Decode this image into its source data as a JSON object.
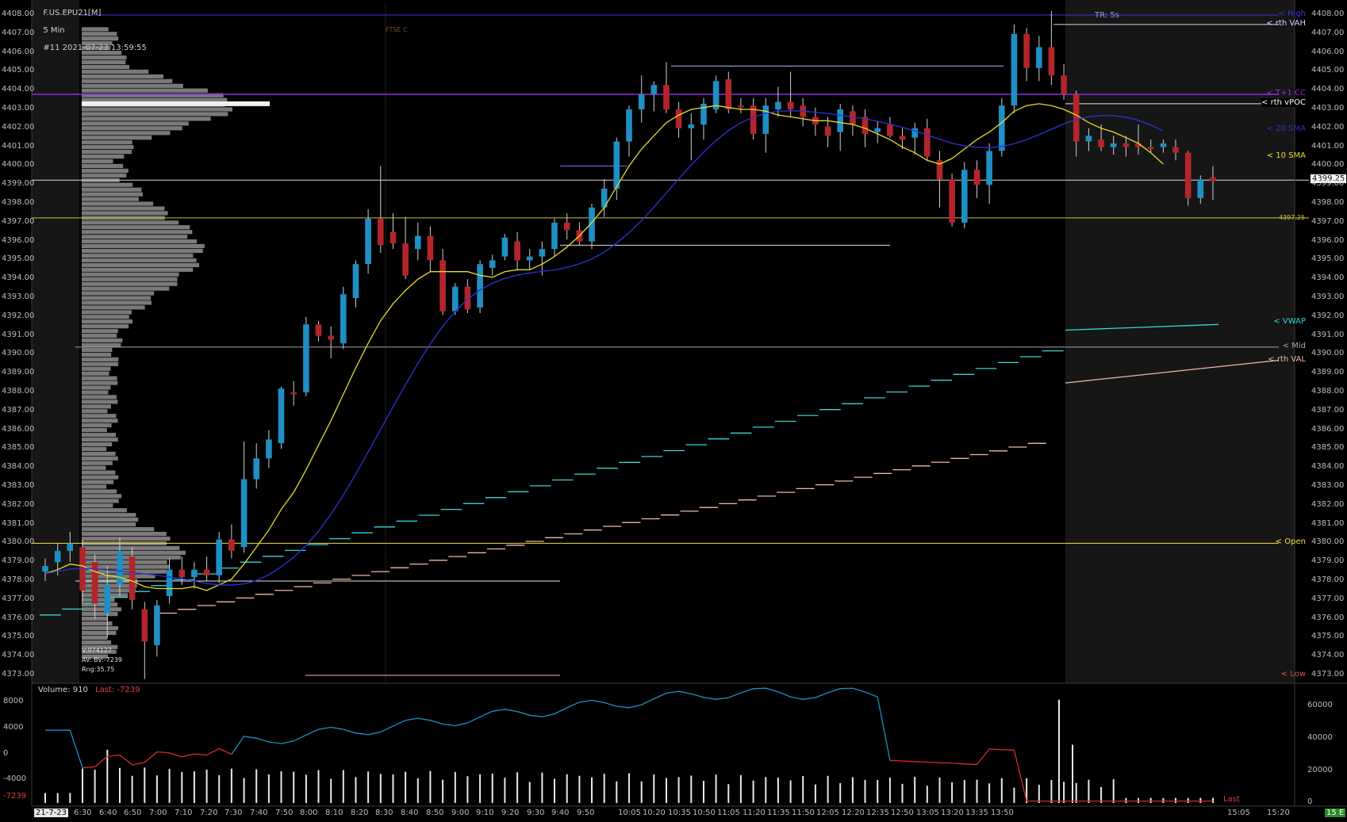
{
  "header": {
    "title": "F.US.EPU21[M]",
    "timeframe": "5 Min",
    "chart_info": "#11 2021-07-23 13:59:55"
  },
  "tr_label": "TR: 5s",
  "ftse_label": "FTSE C",
  "price_axis": {
    "ticks": [
      "4408.00",
      "4407.00",
      "4406.00",
      "4405.00",
      "4404.00",
      "4403.00",
      "4402.00",
      "4401.00",
      "4400.00",
      "4399.00",
      "4398.00",
      "4397.00",
      "4396.00",
      "4395.00",
      "4394.00",
      "4393.00",
      "4392.00",
      "4391.00",
      "4390.00",
      "4389.00",
      "4388.00",
      "4387.00",
      "4386.00",
      "4385.00",
      "4384.00",
      "4383.00",
      "4382.00",
      "4381.00",
      "4380.00",
      "4379.00",
      "4378.00",
      "4377.00",
      "4376.00",
      "4375.00",
      "4374.00",
      "4373.00"
    ],
    "current_price": "4399.25",
    "marker_label": "4397.25"
  },
  "levels": [
    {
      "name": "High",
      "label": "< High",
      "price": 4408.0,
      "color": "#3b3bd8"
    },
    {
      "name": "rth VAH",
      "label": "< rth VAH",
      "price": 4407.5,
      "color": "#d8d8ff"
    },
    {
      "name": "T+1 CC",
      "label": "< T+1 CC",
      "price": 4403.8,
      "color": "#8e2de0"
    },
    {
      "name": "rth vPOC",
      "label": "< rth vPOC",
      "price": 4403.3,
      "color": "#ffffff"
    },
    {
      "name": "20 SMA",
      "label": "< 20 SMA",
      "price": 4401.9,
      "color": "#2d33d8"
    },
    {
      "name": "10 SMA",
      "label": "< 10 SMA",
      "price": 4400.5,
      "color": "#e6dc2d"
    },
    {
      "name": "VWAP",
      "label": "< VWAP",
      "price": 4391.7,
      "color": "#34d6d6"
    },
    {
      "name": "Mid",
      "label": "< Mid",
      "price": 4390.4,
      "color": "#a8a8a8"
    },
    {
      "name": "rth VAL",
      "label": "< rth VAL",
      "price": 4389.7,
      "color": "#f2b8a8"
    },
    {
      "name": "Open",
      "label": "< Open",
      "price": 4380.0,
      "color": "#f0e040"
    },
    {
      "name": "Low",
      "label": "< Low",
      "price": 4373.0,
      "color": "#e05050"
    }
  ],
  "time_axis": {
    "date_label": "21-7-23",
    "labels": [
      "6:30",
      "6:40",
      "6:50",
      "7:00",
      "7:10",
      "7:20",
      "7:30",
      "7:40",
      "7:50",
      "8:00",
      "8:10",
      "8:20",
      "8:30",
      "8:40",
      "8:50",
      "9:00",
      "9:10",
      "9:20",
      "9:30",
      "9:40",
      "9:50",
      "10:05",
      "10:20",
      "10:35",
      "10:50",
      "11:05",
      "11:20",
      "11:35",
      "11:50",
      "12:05",
      "12:20",
      "12:35",
      "12:50",
      "13:05",
      "13:20",
      "13:35",
      "13:50",
      "15:05",
      "15:20"
    ],
    "timeframe_badge": "15 E"
  },
  "profile_stats": {
    "volume": "V:974127",
    "delta": "AV: BV:-7239",
    "range": "Rng:35.75"
  },
  "volume_panel": {
    "label": "Volume: 910",
    "last_label": "Last: -7239",
    "left_ticks": [
      "8000",
      "4000",
      "0",
      "-4000",
      "-7239"
    ],
    "right_ticks": [
      "60000",
      "40000",
      "20000",
      "0"
    ],
    "last_tag": "Last"
  },
  "colors": {
    "up": "#1f8fc4",
    "down": "#b3252a",
    "sma10": "#e6dc2d",
    "sma20": "#2d33d8",
    "vwap": "#34d6d6",
    "val_track": "#f2b8a8",
    "delta_up": "#1f8fc4",
    "delta_down": "#d62a2a"
  },
  "chart_data": {
    "type": "candlestick",
    "symbol": "F.US.EPU21[M]",
    "interval": "5 Min",
    "ylim": [
      4372.6,
      4408.4
    ],
    "candles": [
      {
        "o": 4378.5,
        "h": 4379.2,
        "l": 4378.0,
        "c": 4378.8
      },
      {
        "o": 4379.0,
        "h": 4380.0,
        "l": 4378.3,
        "c": 4379.6
      },
      {
        "o": 4379.6,
        "h": 4380.6,
        "l": 4379.0,
        "c": 4380.0
      },
      {
        "o": 4379.8,
        "h": 4380.2,
        "l": 4376.8,
        "c": 4377.5
      },
      {
        "o": 4379.0,
        "h": 4379.4,
        "l": 4376.0,
        "c": 4376.8
      },
      {
        "o": 4376.3,
        "h": 4378.8,
        "l": 4375.0,
        "c": 4377.8
      },
      {
        "o": 4377.8,
        "h": 4380.3,
        "l": 4377.2,
        "c": 4379.6
      },
      {
        "o": 4379.3,
        "h": 4379.8,
        "l": 4376.5,
        "c": 4377.0
      },
      {
        "o": 4376.5,
        "h": 4376.9,
        "l": 4372.8,
        "c": 4374.8
      },
      {
        "o": 4374.6,
        "h": 4377.0,
        "l": 4374.0,
        "c": 4376.7
      },
      {
        "o": 4377.2,
        "h": 4379.2,
        "l": 4376.8,
        "c": 4378.6
      },
      {
        "o": 4378.6,
        "h": 4379.3,
        "l": 4377.8,
        "c": 4378.2
      },
      {
        "o": 4378.2,
        "h": 4379.0,
        "l": 4377.6,
        "c": 4378.6
      },
      {
        "o": 4378.6,
        "h": 4379.3,
        "l": 4378.0,
        "c": 4378.3
      },
      {
        "o": 4378.3,
        "h": 4380.6,
        "l": 4377.9,
        "c": 4380.2
      },
      {
        "o": 4380.2,
        "h": 4381.0,
        "l": 4379.2,
        "c": 4379.6
      },
      {
        "o": 4379.8,
        "h": 4385.4,
        "l": 4379.5,
        "c": 4383.4
      },
      {
        "o": 4383.4,
        "h": 4385.3,
        "l": 4382.9,
        "c": 4384.5
      },
      {
        "o": 4384.5,
        "h": 4386.0,
        "l": 4384.0,
        "c": 4385.5
      },
      {
        "o": 4385.3,
        "h": 4388.3,
        "l": 4385.0,
        "c": 4388.2
      },
      {
        "o": 4388.0,
        "h": 4388.6,
        "l": 4387.3,
        "c": 4387.9
      },
      {
        "o": 4388.0,
        "h": 4392.0,
        "l": 4387.8,
        "c": 4391.6
      },
      {
        "o": 4391.6,
        "h": 4391.8,
        "l": 4390.7,
        "c": 4391.0
      },
      {
        "o": 4391.0,
        "h": 4391.5,
        "l": 4389.8,
        "c": 4390.8
      },
      {
        "o": 4390.6,
        "h": 4393.6,
        "l": 4390.3,
        "c": 4393.2
      },
      {
        "o": 4393.0,
        "h": 4395.0,
        "l": 4392.5,
        "c": 4394.8
      },
      {
        "o": 4394.8,
        "h": 4397.7,
        "l": 4394.3,
        "c": 4397.2
      },
      {
        "o": 4397.2,
        "h": 4400.0,
        "l": 4395.4,
        "c": 4395.8
      },
      {
        "o": 4396.5,
        "h": 4397.5,
        "l": 4395.6,
        "c": 4395.9
      },
      {
        "o": 4395.9,
        "h": 4397.3,
        "l": 4394.0,
        "c": 4394.2
      },
      {
        "o": 4395.6,
        "h": 4397.0,
        "l": 4395.0,
        "c": 4396.3
      },
      {
        "o": 4396.3,
        "h": 4396.8,
        "l": 4394.4,
        "c": 4395.0
      },
      {
        "o": 4395.0,
        "h": 4395.6,
        "l": 4392.1,
        "c": 4392.3
      },
      {
        "o": 4392.3,
        "h": 4393.8,
        "l": 4392.1,
        "c": 4393.6
      },
      {
        "o": 4393.6,
        "h": 4394.0,
        "l": 4392.2,
        "c": 4392.4
      },
      {
        "o": 4392.5,
        "h": 4395.0,
        "l": 4392.2,
        "c": 4394.8
      },
      {
        "o": 4394.6,
        "h": 4395.3,
        "l": 4394.2,
        "c": 4395.0
      },
      {
        "o": 4395.2,
        "h": 4396.4,
        "l": 4395.0,
        "c": 4396.2
      },
      {
        "o": 4396.0,
        "h": 4396.5,
        "l": 4394.5,
        "c": 4395.0
      },
      {
        "o": 4395.0,
        "h": 4395.6,
        "l": 4394.5,
        "c": 4395.2
      },
      {
        "o": 4395.2,
        "h": 4396.0,
        "l": 4394.2,
        "c": 4395.6
      },
      {
        "o": 4395.6,
        "h": 4397.2,
        "l": 4395.2,
        "c": 4397.0
      },
      {
        "o": 4397.0,
        "h": 4397.5,
        "l": 4396.1,
        "c": 4396.6
      },
      {
        "o": 4396.6,
        "h": 4397.0,
        "l": 4395.8,
        "c": 4396.0
      },
      {
        "o": 4396.0,
        "h": 4398.0,
        "l": 4395.6,
        "c": 4397.8
      },
      {
        "o": 4397.8,
        "h": 4399.3,
        "l": 4397.3,
        "c": 4398.8
      },
      {
        "o": 4398.8,
        "h": 4401.5,
        "l": 4398.2,
        "c": 4401.3
      },
      {
        "o": 4401.3,
        "h": 4403.2,
        "l": 4400.5,
        "c": 4403.0
      },
      {
        "o": 4403.0,
        "h": 4404.8,
        "l": 4402.3,
        "c": 4403.8
      },
      {
        "o": 4403.8,
        "h": 4404.5,
        "l": 4402.9,
        "c": 4404.3
      },
      {
        "o": 4404.3,
        "h": 4405.5,
        "l": 4402.8,
        "c": 4403.0
      },
      {
        "o": 4403.0,
        "h": 4403.4,
        "l": 4401.5,
        "c": 4402.0
      },
      {
        "o": 4402.0,
        "h": 4402.8,
        "l": 4400.3,
        "c": 4402.2
      },
      {
        "o": 4402.2,
        "h": 4403.6,
        "l": 4401.4,
        "c": 4403.3
      },
      {
        "o": 4403.0,
        "h": 4404.8,
        "l": 4402.8,
        "c": 4404.5
      },
      {
        "o": 4404.6,
        "h": 4405.0,
        "l": 4402.8,
        "c": 4403.0
      },
      {
        "o": 4403.2,
        "h": 4403.6,
        "l": 4402.8,
        "c": 4403.1
      },
      {
        "o": 4403.2,
        "h": 4403.6,
        "l": 4401.4,
        "c": 4401.7
      },
      {
        "o": 4401.7,
        "h": 4403.6,
        "l": 4400.7,
        "c": 4403.2
      },
      {
        "o": 4403.0,
        "h": 4404.2,
        "l": 4402.6,
        "c": 4403.4
      },
      {
        "o": 4403.4,
        "h": 4405.0,
        "l": 4402.6,
        "c": 4403.0
      },
      {
        "o": 4403.2,
        "h": 4403.6,
        "l": 4402.1,
        "c": 4402.6
      },
      {
        "o": 4402.6,
        "h": 4403.1,
        "l": 4401.6,
        "c": 4402.2
      },
      {
        "o": 4402.1,
        "h": 4402.6,
        "l": 4401.0,
        "c": 4401.6
      },
      {
        "o": 4401.8,
        "h": 4403.3,
        "l": 4400.8,
        "c": 4403.0
      },
      {
        "o": 4402.9,
        "h": 4403.2,
        "l": 4401.6,
        "c": 4402.2
      },
      {
        "o": 4402.6,
        "h": 4403.0,
        "l": 4401.0,
        "c": 4401.7
      },
      {
        "o": 4401.8,
        "h": 4402.4,
        "l": 4401.2,
        "c": 4402.0
      },
      {
        "o": 4402.2,
        "h": 4402.6,
        "l": 4401.5,
        "c": 4401.6
      },
      {
        "o": 4401.6,
        "h": 4402.0,
        "l": 4400.9,
        "c": 4401.4
      },
      {
        "o": 4401.5,
        "h": 4402.3,
        "l": 4400.6,
        "c": 4402.0
      },
      {
        "o": 4402.0,
        "h": 4402.5,
        "l": 4400.3,
        "c": 4400.5
      },
      {
        "o": 4400.3,
        "h": 4400.8,
        "l": 4397.8,
        "c": 4399.3
      },
      {
        "o": 4399.3,
        "h": 4399.6,
        "l": 4396.8,
        "c": 4397.0
      },
      {
        "o": 4397.0,
        "h": 4400.2,
        "l": 4396.7,
        "c": 4399.8
      },
      {
        "o": 4399.8,
        "h": 4400.3,
        "l": 4398.3,
        "c": 4399.0
      },
      {
        "o": 4399.0,
        "h": 4401.2,
        "l": 4398.0,
        "c": 4400.8
      },
      {
        "o": 4400.8,
        "h": 4403.6,
        "l": 4400.5,
        "c": 4403.2
      },
      {
        "o": 4403.2,
        "h": 4407.5,
        "l": 4402.8,
        "c": 4407.0
      },
      {
        "o": 4407.0,
        "h": 4407.3,
        "l": 4404.5,
        "c": 4405.2
      },
      {
        "o": 4405.2,
        "h": 4406.9,
        "l": 4404.5,
        "c": 4406.3
      },
      {
        "o": 4406.3,
        "h": 4408.2,
        "l": 4404.3,
        "c": 4404.8
      },
      {
        "o": 4404.8,
        "h": 4405.4,
        "l": 4403.5,
        "c": 4403.8
      },
      {
        "o": 4403.8,
        "h": 4404.0,
        "l": 4400.5,
        "c": 4401.3
      },
      {
        "o": 4401.3,
        "h": 4402.0,
        "l": 4400.8,
        "c": 4401.6
      },
      {
        "o": 4401.4,
        "h": 4402.2,
        "l": 4400.8,
        "c": 4401.0
      },
      {
        "o": 4401.0,
        "h": 4401.6,
        "l": 4400.6,
        "c": 4401.2
      },
      {
        "o": 4401.2,
        "h": 4401.6,
        "l": 4400.5,
        "c": 4401.0
      },
      {
        "o": 4401.2,
        "h": 4402.2,
        "l": 4400.6,
        "c": 4401.0
      },
      {
        "o": 4401.0,
        "h": 4401.4,
        "l": 4400.7,
        "c": 4400.9
      },
      {
        "o": 4401.0,
        "h": 4401.4,
        "l": 4400.7,
        "c": 4401.2
      },
      {
        "o": 4401.0,
        "h": 4401.4,
        "l": 4400.3,
        "c": 4400.7
      },
      {
        "o": 4400.7,
        "h": 4400.8,
        "l": 4397.9,
        "c": 4398.3
      },
      {
        "o": 4398.3,
        "h": 4399.5,
        "l": 4398.0,
        "c": 4399.3
      },
      {
        "o": 4399.4,
        "h": 4400.0,
        "l": 4398.2,
        "c": 4399.2
      }
    ],
    "sma10": [
      4378.4,
      4378.6,
      4378.9,
      4378.8,
      4378.5,
      4378.3,
      4378.2,
      4378.0,
      4377.7,
      4377.6,
      4377.6,
      4377.6,
      4377.7,
      4377.5,
      4377.8,
      4378.1,
      4378.9,
      4379.8,
      4380.7,
      4381.8,
      4382.7,
      4383.9,
      4385.2,
      4386.5,
      4387.9,
      4389.3,
      4390.6,
      4391.8,
      4392.7,
      4393.4,
      4394.0,
      4394.4,
      4394.4,
      4394.4,
      4394.4,
      4394.2,
      4394.1,
      4394.4,
      4394.5,
      4394.5,
      4394.8,
      4395.2,
      4395.7,
      4396.3,
      4397.0,
      4397.8,
      4398.9,
      4400.0,
      4400.9,
      4401.6,
      4402.3,
      4402.7,
      4403.0,
      4403.1,
      4403.2,
      4403.1,
      4403.0,
      4403.0,
      4402.9,
      4402.7,
      4402.6,
      4402.5,
      4402.4,
      4402.4,
      4402.3,
      4402.2,
      4402.0,
      4401.7,
      4401.4,
      4401.0,
      4400.7,
      4400.3,
      4400.1,
      4400.4,
      4400.9,
      4401.4,
      4401.8,
      4402.3,
      4402.9,
      4403.2,
      4403.3,
      4403.2,
      4403.0,
      4402.7,
      4402.3,
      4402.0,
      4401.8,
      4401.5,
      4401.2,
      4400.7,
      4400.1
    ]
  }
}
